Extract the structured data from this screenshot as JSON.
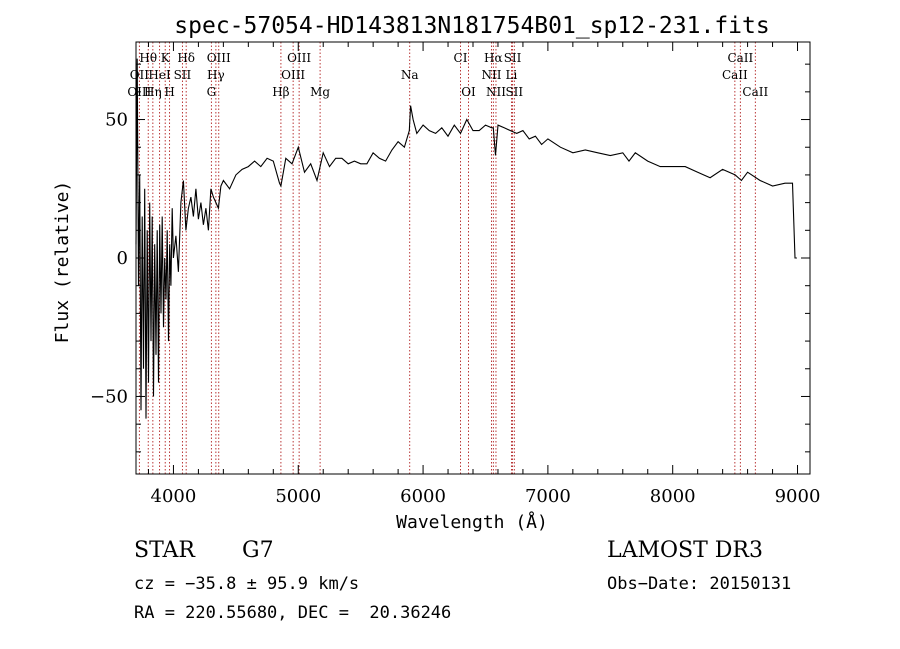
{
  "chart_data": {
    "type": "line",
    "title": "spec-57054-HD143813N181754B01_sp12-231.fits",
    "xlabel": "Wavelength (Å)",
    "ylabel": "Flux (relative)",
    "xlim": [
      3700,
      9100
    ],
    "ylim": [
      -78,
      78
    ],
    "xticks": [
      4000,
      5000,
      6000,
      7000,
      8000,
      9000
    ],
    "yticks": [
      -50,
      0,
      50
    ],
    "grid": false,
    "legend": "none",
    "line_color": "#000000",
    "marker_color": "#b22222",
    "series": [
      {
        "x": [
          3700,
          3710,
          3720,
          3730,
          3740,
          3750,
          3760,
          3770,
          3780,
          3790,
          3800,
          3810,
          3820,
          3830,
          3840,
          3850,
          3860,
          3870,
          3880,
          3890,
          3900,
          3910,
          3920,
          3930,
          3940,
          3950,
          3960,
          3970,
          3980,
          3990,
          4000,
          4020,
          4040,
          4060,
          4080,
          4100,
          4120,
          4140,
          4160,
          4180,
          4200,
          4220,
          4240,
          4260,
          4280,
          4300,
          4320,
          4340,
          4360,
          4380,
          4400,
          4450,
          4500,
          4550,
          4600,
          4650,
          4700,
          4750,
          4800,
          4850,
          4861,
          4900,
          4950,
          5000,
          5050,
          5100,
          5150,
          5200,
          5250,
          5300,
          5350,
          5400,
          5450,
          5500,
          5550,
          5600,
          5650,
          5700,
          5750,
          5800,
          5850,
          5890,
          5900,
          5920,
          5950,
          6000,
          6050,
          6100,
          6150,
          6200,
          6250,
          6300,
          6350,
          6400,
          6450,
          6500,
          6550,
          6563,
          6580,
          6600,
          6650,
          6700,
          6750,
          6800,
          6850,
          6900,
          6950,
          7000,
          7100,
          7200,
          7300,
          7400,
          7500,
          7600,
          7650,
          7700,
          7800,
          7900,
          8000,
          8100,
          8200,
          8300,
          8400,
          8500,
          8550,
          8600,
          8700,
          8800,
          8900,
          8960,
          8980,
          8995
        ],
        "y": [
          5,
          72,
          -10,
          30,
          -55,
          15,
          -40,
          25,
          -58,
          10,
          -45,
          20,
          -30,
          15,
          -50,
          5,
          -35,
          10,
          -45,
          12,
          -20,
          15,
          -25,
          0,
          -15,
          10,
          -30,
          5,
          -10,
          18,
          0,
          8,
          -5,
          20,
          28,
          10,
          18,
          22,
          15,
          25,
          14,
          20,
          12,
          18,
          10,
          25,
          22,
          20,
          18,
          26,
          28,
          25,
          30,
          32,
          33,
          35,
          33,
          36,
          35,
          27,
          26,
          36,
          34,
          40,
          31,
          34,
          28,
          38,
          33,
          36,
          36,
          34,
          35,
          34,
          34,
          38,
          36,
          35,
          39,
          42,
          40,
          46,
          55,
          50,
          45,
          48,
          46,
          45,
          47,
          44,
          48,
          45,
          50,
          46,
          46,
          48,
          47,
          47,
          37,
          48,
          47,
          46,
          45,
          46,
          43,
          44,
          41,
          43,
          40,
          38,
          39,
          38,
          37,
          38,
          35,
          38,
          35,
          33,
          33,
          33,
          31,
          29,
          32,
          30,
          28,
          31,
          28,
          26,
          27,
          27,
          0,
          0
        ]
      }
    ],
    "annotations": [
      {
        "label": "Hθ",
        "x": 3798,
        "row": 1
      },
      {
        "label": "OII",
        "x": 3727,
        "row": 2
      },
      {
        "label": "OIII",
        "x": 3727,
        "row": 3
      },
      {
        "label": "K",
        "x": 3934,
        "row": 1
      },
      {
        "label": "HeI",
        "x": 3889,
        "row": 2
      },
      {
        "label": "Hη",
        "x": 3835,
        "row": 3
      },
      {
        "label": "Hδ",
        "x": 4102,
        "row": 1
      },
      {
        "label": "SII",
        "x": 4072,
        "row": 2
      },
      {
        "label": "H",
        "x": 3969,
        "row": 3
      },
      {
        "label": "OIII",
        "x": 4363,
        "row": 1
      },
      {
        "label": "Hγ",
        "x": 4340,
        "row": 2
      },
      {
        "label": "G",
        "x": 4304,
        "row": 3
      },
      {
        "label": "OIII",
        "x": 5007,
        "row": 1
      },
      {
        "label": "OIII",
        "x": 4959,
        "row": 2
      },
      {
        "label": "Hβ",
        "x": 4861,
        "row": 3
      },
      {
        "label": "Mg",
        "x": 5175,
        "row": 3
      },
      {
        "label": "Na",
        "x": 5893,
        "row": 2
      },
      {
        "label": "CI",
        "x": 6300,
        "row": 1
      },
      {
        "label": "OI",
        "x": 6364,
        "row": 3
      },
      {
        "label": "Hα",
        "x": 6563,
        "row": 1
      },
      {
        "label": "SII",
        "x": 6717,
        "row": 1
      },
      {
        "label": "NII",
        "x": 6548,
        "row": 2
      },
      {
        "label": "Li",
        "x": 6708,
        "row": 2
      },
      {
        "label": "NII",
        "x": 6584,
        "row": 3
      },
      {
        "label": "SII",
        "x": 6731,
        "row": 3
      },
      {
        "label": "CaII",
        "x": 8542,
        "row": 1
      },
      {
        "label": "CaII",
        "x": 8498,
        "row": 2
      },
      {
        "label": "CaII",
        "x": 8662,
        "row": 3
      }
    ]
  },
  "info": {
    "object_class": "STAR",
    "subclass": "G7",
    "survey": "LAMOST DR3",
    "cz": "cz = −35.8 ± 95.9 km/s",
    "obs_date": "Obs−Date: 20150131",
    "coords": "RA = 220.55680, DEC =  20.36246"
  }
}
